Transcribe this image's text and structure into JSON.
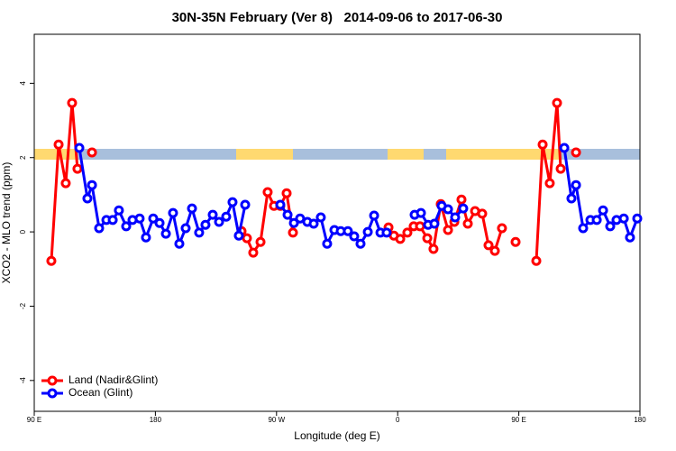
{
  "chart_data": {
    "type": "line",
    "title": "30N-35N February (Ver 8)   2014-09-06 to 2017-06-30",
    "xlabel": "Longitude (deg E)",
    "ylabel": "XCO2 - MLO trend (ppm)",
    "xlim": [
      90,
      540
    ],
    "ylim": [
      -4.83,
      5.32
    ],
    "xticks": [
      {
        "value": 90,
        "label": "90 E"
      },
      180,
      {
        "value": 270,
        "label": "90 W"
      },
      0,
      {
        "value": 450,
        "label": "90 E"
      },
      {
        "value": 540,
        "label": "180"
      }
    ],
    "yticks": [
      4,
      2,
      0,
      -2,
      -4
    ],
    "legend": "bottom-left",
    "series": [
      {
        "name": "Land (Nadir&Glint)",
        "color": "#ff0000",
        "x": [
          102.7,
          108.1,
          113.4,
          118.1,
          122.1,
          null,
          132.9,
          null,
          244.0,
          248.0,
          252.7,
          258.1,
          263.4,
          268.1,
          272.8,
          277.5,
          282.2,
          null,
          353.2,
          357.2,
          361.9,
          367.2,
          371.9,
          376.6,
          382.0,
          386.6,
          392.0,
          397.4,
          402.1,
          407.4,
          412.1,
          417.5,
          422.8,
          427.5,
          432.2,
          437.5,
          null,
          447.6,
          null,
          463.0,
          467.7,
          473.0,
          478.4,
          481.1,
          null,
          492.5
        ],
        "values": [
          -0.78,
          2.35,
          1.31,
          3.47,
          1.7,
          null,
          2.14,
          null,
          0.02,
          -0.17,
          -0.56,
          -0.27,
          1.07,
          0.7,
          0.7,
          1.04,
          -0.02,
          null,
          0.12,
          -0.1,
          -0.19,
          -0.02,
          0.15,
          0.15,
          -0.17,
          -0.46,
          0.75,
          0.05,
          0.27,
          0.87,
          0.22,
          0.56,
          0.49,
          -0.36,
          -0.51,
          0.1,
          null,
          -0.27,
          null,
          -0.78,
          2.35,
          1.31,
          3.47,
          1.7,
          null,
          2.14
        ]
      },
      {
        "name": "Ocean (Glint)",
        "color": "#0000ff",
        "x": [
          123.5,
          129.5,
          132.9,
          138.2,
          143.6,
          148.3,
          152.9,
          158.3,
          163.0,
          168.3,
          173.0,
          178.4,
          183.1,
          187.8,
          193.1,
          197.8,
          202.5,
          207.2,
          212.5,
          217.2,
          222.6,
          227.3,
          232.6,
          237.3,
          242.0,
          246.7,
          null,
          272.8,
          278.2,
          282.9,
          287.5,
          292.9,
          297.6,
          302.9,
          307.6,
          313.0,
          317.7,
          323.0,
          327.7,
          332.4,
          337.8,
          342.5,
          347.2,
          351.8,
          null,
          372.6,
          377.3,
          382.6,
          387.3,
          392.7,
          397.4,
          402.7,
          408.7,
          null,
          483.8,
          489.1,
          492.5,
          497.8,
          503.2,
          507.9,
          512.6,
          517.9,
          522.6,
          528.0,
          532.6,
          538.0
        ],
        "values": [
          2.26,
          0.9,
          1.26,
          0.1,
          0.32,
          0.32,
          0.58,
          0.15,
          0.32,
          0.36,
          -0.15,
          0.36,
          0.24,
          -0.05,
          0.51,
          -0.32,
          0.1,
          0.63,
          -0.02,
          0.19,
          0.46,
          0.27,
          0.41,
          0.8,
          -0.1,
          0.73,
          null,
          0.73,
          0.46,
          0.24,
          0.36,
          0.27,
          0.22,
          0.39,
          -0.32,
          0.05,
          0.02,
          0.02,
          -0.12,
          -0.32,
          0.0,
          0.44,
          -0.02,
          -0.02,
          null,
          0.46,
          0.51,
          0.19,
          0.22,
          0.7,
          0.61,
          0.39,
          0.63,
          null,
          2.26,
          0.9,
          1.26,
          0.1,
          0.32,
          0.32,
          0.58,
          0.15,
          0.32,
          0.36,
          -0.15,
          0.36
        ]
      }
    ]
  }
}
